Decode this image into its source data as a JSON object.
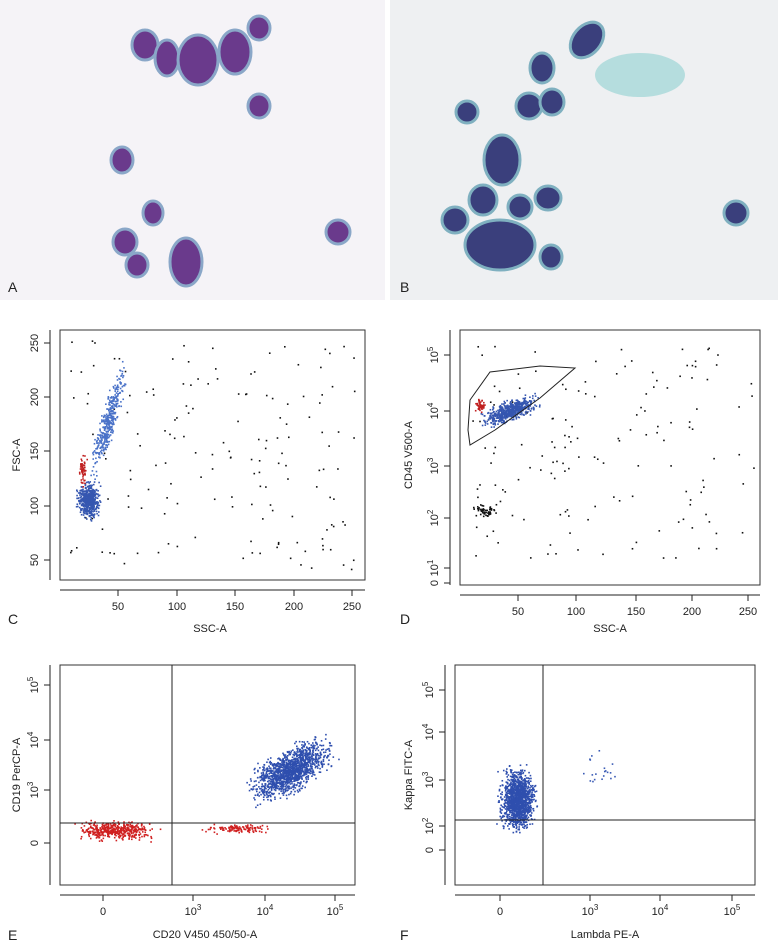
{
  "panels": [
    {
      "letter": "A"
    },
    {
      "letter": "B"
    },
    {
      "letter": "C",
      "x_label": "SSC-A",
      "y_label": "FSC-A",
      "x_ticks": [
        "50",
        "100",
        "150",
        "200",
        "250"
      ],
      "y_ticks": [
        "50",
        "100",
        "150",
        "200",
        "250"
      ]
    },
    {
      "letter": "D",
      "x_label": "SSC-A",
      "y_label": "CD45 V500-A",
      "x_ticks": [
        "50",
        "100",
        "150",
        "200",
        "250"
      ],
      "y_ticks": [
        "0",
        {
          "base": "10",
          "exp": "1"
        },
        {
          "base": "10",
          "exp": "2"
        },
        {
          "base": "10",
          "exp": "3"
        },
        {
          "base": "10",
          "exp": "4"
        },
        {
          "base": "10",
          "exp": "5"
        }
      ]
    },
    {
      "letter": "E",
      "x_label": "CD20 V450 450/50-A",
      "y_label": "CD19 PerCP-A",
      "x_ticks": [
        "0",
        {
          "base": "10",
          "exp": "3"
        },
        {
          "base": "10",
          "exp": "4"
        },
        {
          "base": "10",
          "exp": "5"
        }
      ],
      "y_ticks": [
        "0",
        {
          "base": "10",
          "exp": "3"
        },
        {
          "base": "10",
          "exp": "4"
        },
        {
          "base": "10",
          "exp": "5"
        }
      ]
    },
    {
      "letter": "F",
      "x_label": "Lambda PE-A",
      "y_label": "Kappa FITC-A",
      "x_ticks": [
        "0",
        {
          "base": "10",
          "exp": "3"
        },
        {
          "base": "10",
          "exp": "4"
        },
        {
          "base": "10",
          "exp": "5"
        }
      ],
      "y_ticks": [
        "0",
        {
          "base": "10",
          "exp": "2"
        },
        {
          "base": "10",
          "exp": "3"
        },
        {
          "base": "10",
          "exp": "4"
        },
        {
          "base": "10",
          "exp": "5"
        }
      ]
    }
  ]
}
